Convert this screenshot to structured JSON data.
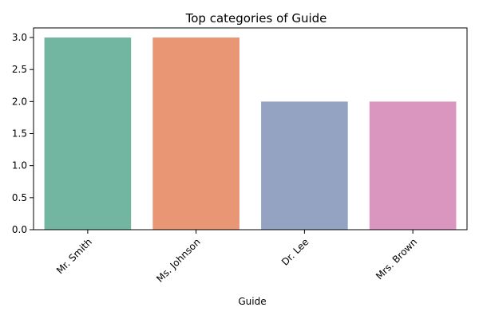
{
  "chart_data": {
    "type": "bar",
    "title": "Top categories of Guide",
    "xlabel": "Guide",
    "ylabel": "",
    "categories": [
      "Mr. Smith",
      "Ms. Johnson",
      "Dr. Lee",
      "Mrs. Brown"
    ],
    "values": [
      3,
      3,
      2,
      2
    ],
    "colors": [
      "#72b6a1",
      "#e99675",
      "#95a3c3",
      "#db96c0"
    ],
    "ylim": [
      0,
      3.15
    ],
    "yticks": [
      0.0,
      0.5,
      1.0,
      1.5,
      2.0,
      2.5,
      3.0
    ],
    "grid": false,
    "legend": "none"
  }
}
